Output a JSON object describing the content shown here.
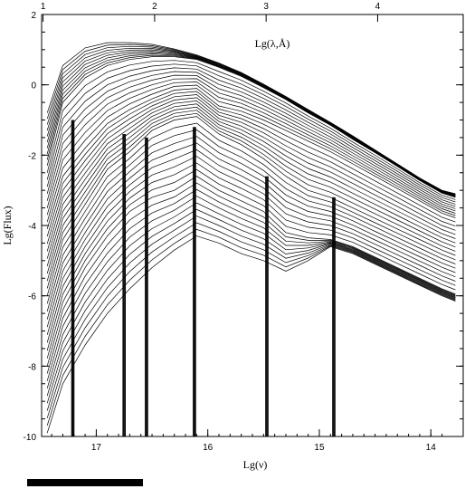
{
  "chart_data": {
    "type": "line",
    "title": "",
    "xlabel": "Lg(ν)",
    "ylabel": "Lg(Flux)",
    "top_axis_label": "Lg(λ,Å)",
    "x_reversed": true,
    "xlim": [
      17.49,
      13.71
    ],
    "ylim": [
      -10,
      2
    ],
    "x_ticks": [
      "17",
      "16",
      "15",
      "14"
    ],
    "x_tick_values": [
      17,
      16,
      15,
      14
    ],
    "y_ticks": [
      "-10",
      "-8",
      "-6",
      "-4",
      "-2",
      "0",
      "2"
    ],
    "y_tick_values": [
      -10,
      -8,
      -6,
      -4,
      -2,
      0,
      2
    ],
    "top_ticks": [
      "1",
      "2",
      "3",
      "4"
    ],
    "top_tick_values": [
      1,
      2,
      3,
      4
    ],
    "grid": false,
    "legend": "none",
    "edges": [
      17.22,
      16.76,
      16.56,
      16.13,
      15.48,
      14.88
    ],
    "series": [
      {
        "x": [
          17.44,
          17.3,
          17.1,
          16.9,
          16.7,
          16.5,
          16.3,
          16.1,
          15.9,
          15.7,
          15.5,
          15.3,
          15.1,
          14.9,
          14.7,
          14.5,
          14.3,
          14.1,
          13.9,
          13.78
        ],
        "y": [
          -0.8,
          0.55,
          1.05,
          1.2,
          1.2,
          1.15,
          1.02,
          0.85,
          0.62,
          0.35,
          0.02,
          -0.33,
          -0.7,
          -1.07,
          -1.45,
          -1.85,
          -2.25,
          -2.65,
          -3.0,
          -3.1
        ]
      },
      {
        "x": [
          17.44,
          17.3,
          17.1,
          16.9,
          16.7,
          16.5,
          16.3,
          16.1,
          15.9,
          15.7,
          15.5,
          15.3,
          15.1,
          14.9,
          14.7,
          14.5,
          14.3,
          14.1,
          13.9,
          13.78
        ],
        "y": [
          -2.3,
          -0.5,
          0.2,
          0.55,
          0.72,
          0.8,
          0.8,
          0.72,
          0.5,
          0.24,
          -0.08,
          -0.42,
          -0.8,
          -1.15,
          -1.55,
          -1.93,
          -2.32,
          -2.72,
          -3.08,
          -3.2
        ]
      },
      {
        "x": [
          17.44,
          17.3,
          17.1,
          16.9,
          16.7,
          16.5,
          16.3,
          16.1,
          15.9,
          15.7,
          15.5,
          15.3,
          15.1,
          14.9,
          14.7,
          14.5,
          14.3,
          14.1,
          13.9,
          13.78
        ],
        "y": [
          -4.1,
          -2.6,
          -1.8,
          -1.1,
          -0.7,
          -0.4,
          -0.15,
          -0.1,
          -0.6,
          -0.75,
          -1.0,
          -1.3,
          -1.6,
          -1.9,
          -2.25,
          -2.6,
          -2.95,
          -3.3,
          -3.65,
          -3.78
        ]
      },
      {
        "x": [
          17.44,
          17.3,
          17.1,
          16.9,
          16.7,
          16.5,
          16.3,
          16.1,
          15.9,
          15.7,
          15.5,
          15.3,
          15.1,
          14.9,
          14.7,
          14.5,
          14.3,
          14.1,
          13.9,
          13.78
        ],
        "y": [
          -6.0,
          -4.4,
          -3.4,
          -2.4,
          -1.9,
          -1.3,
          -1.0,
          -0.9,
          -1.4,
          -1.7,
          -2.1,
          -2.6,
          -3.0,
          -3.2,
          -3.5,
          -3.8,
          -4.1,
          -4.4,
          -4.7,
          -4.85
        ]
      },
      {
        "x": [
          17.44,
          17.3,
          17.1,
          16.9,
          16.7,
          16.5,
          16.3,
          16.1,
          15.9,
          15.7,
          15.5,
          15.3,
          15.1,
          14.9,
          14.7,
          14.5,
          14.3,
          14.1,
          13.9,
          13.78
        ],
        "y": [
          -8.0,
          -6.4,
          -5.2,
          -4.3,
          -3.6,
          -3.2,
          -3.0,
          -2.6,
          -3.0,
          -3.3,
          -3.6,
          -4.2,
          -4.35,
          -4.4,
          -4.6,
          -4.9,
          -5.2,
          -5.5,
          -5.8,
          -5.95
        ]
      },
      {
        "x": [
          17.44,
          17.3,
          17.1,
          16.9,
          16.7,
          16.5,
          16.3,
          16.1,
          15.9,
          15.7,
          15.5,
          15.3,
          15.1,
          14.9,
          14.7,
          14.5,
          14.3,
          14.1,
          13.9,
          13.78
        ],
        "y": [
          -9.9,
          -8.5,
          -7.4,
          -6.5,
          -5.8,
          -5.2,
          -4.7,
          -4.3,
          -4.5,
          -4.8,
          -5.0,
          -5.3,
          -5.0,
          -4.6,
          -4.8,
          -5.1,
          -5.4,
          -5.7,
          -6.0,
          -6.15
        ]
      }
    ]
  }
}
